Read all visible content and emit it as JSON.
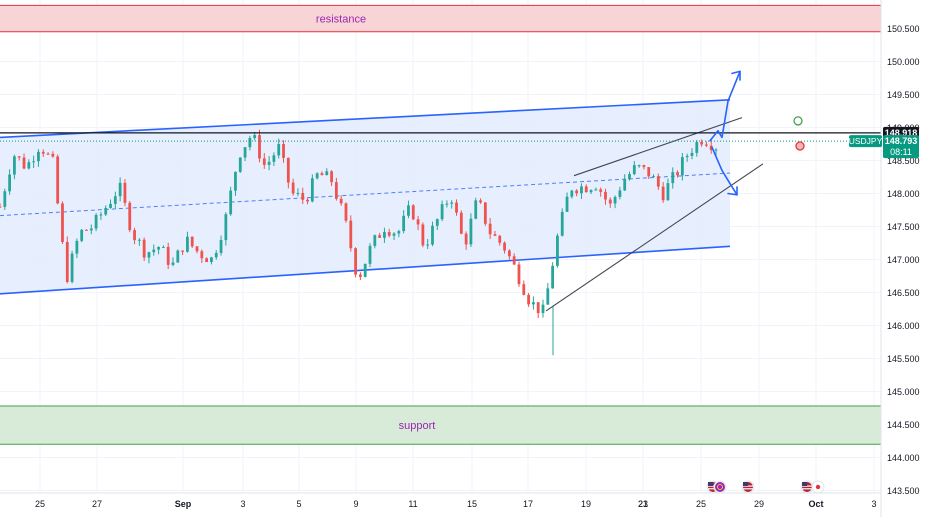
{
  "chart_data": {
    "type": "candlestick",
    "symbol": "USDJPY",
    "grid": true,
    "ylim": [
      143.4,
      150.95
    ],
    "y_ticks": [
      "150.500",
      "150.000",
      "149.500",
      "149.000",
      "148.500",
      "148.000",
      "147.500",
      "147.000",
      "146.500",
      "146.000",
      "145.500",
      "145.000",
      "144.500",
      "144.000",
      "143.500"
    ],
    "x_ticks": [
      "25",
      "27",
      "Sep",
      "3",
      "5",
      "9",
      "11",
      "15",
      "17",
      "19",
      "21",
      "23",
      "25",
      "29",
      "Oct",
      "3"
    ],
    "last_price": "148.793",
    "countdown": "08:11",
    "level_label": "148.918",
    "level_price": 148.918,
    "zones": {
      "resistance": {
        "label": "resistance",
        "from": 150.45,
        "to": 150.85
      },
      "support": {
        "label": "support",
        "from": 144.2,
        "to": 144.78
      }
    },
    "channel": {
      "upper_start": 148.85,
      "upper_end": 149.42,
      "lower_start": 146.48,
      "lower_end": 147.2
    },
    "wedge": {
      "upper_start": 148.27,
      "upper_end": 149.15,
      "lower_start": 146.22,
      "lower_end": 148.45
    },
    "close_path": [
      147.8,
      148.6,
      148.4,
      148.75,
      148.45,
      146.7,
      147.4,
      147.5,
      147.8,
      148.1,
      147.4,
      147.1,
      147.2,
      146.9,
      147.3,
      147.1,
      147.0,
      147.6,
      148.6,
      148.9,
      148.4,
      148.7,
      148.0,
      147.9,
      148.3,
      148.2,
      147.6,
      146.7,
      147.2,
      147.5,
      147.4,
      147.8,
      147.2,
      147.6,
      148.0,
      147.2,
      147.9,
      147.4,
      147.2,
      146.8,
      146.35,
      146.2,
      147.3,
      148.1,
      148.1,
      148.15,
      147.8,
      148.2,
      148.4,
      148.3,
      148.0,
      148.3,
      148.65,
      148.85,
      148.72
    ],
    "markers": {
      "green_circle": 149.1,
      "red_circle": 148.72
    },
    "icons": [
      "flag-us-icon",
      "flag-eu-icon",
      "flag-us-icon",
      "flag-us-icon",
      "flag-jp-icon"
    ],
    "colors": {
      "bull": "#26a69a",
      "bear": "#ef5350",
      "channel": "#2962ff",
      "channel_fill": "#e3ecfe",
      "resistance_fill": "#f8d4d6",
      "resistance_border": "#e5323c",
      "support_fill": "#d8ebd9",
      "support_border": "#43a047",
      "zone_label": "#9c27b0",
      "price_badge": "#089981",
      "level_badge": "#131722"
    }
  }
}
